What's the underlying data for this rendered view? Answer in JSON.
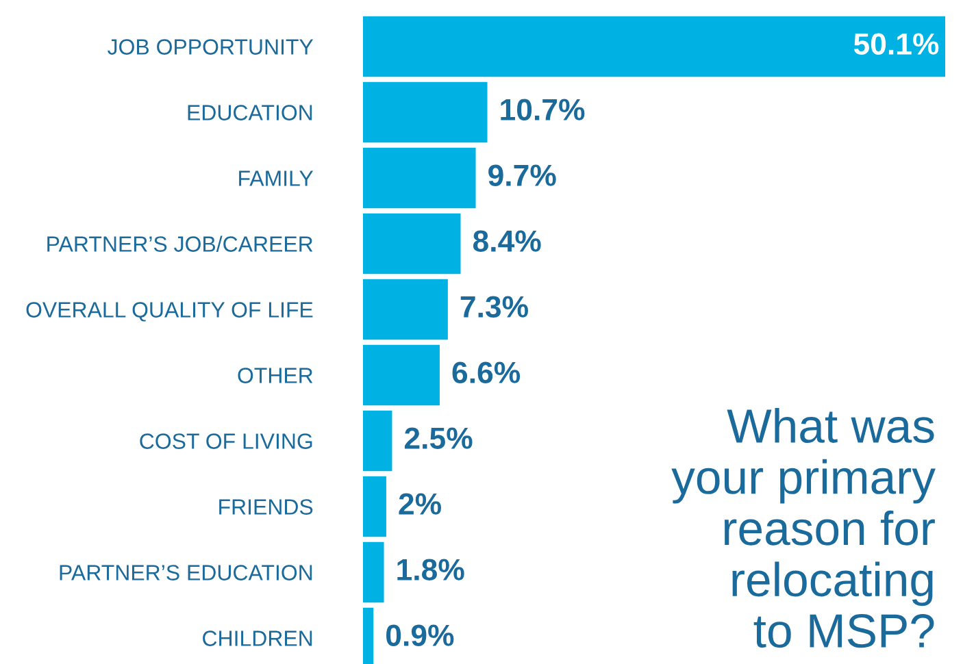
{
  "chart_data": {
    "type": "bar",
    "orientation": "horizontal",
    "title": "What was\nyour primary\nreason for\nrelocating\nto MSP?",
    "categories": [
      "JOB OPPORTUNITY",
      "EDUCATION",
      "FAMILY",
      "PARTNER’S JOB/CAREER",
      "OVERALL QUALITY OF LIFE",
      "OTHER",
      "COST OF LIVING",
      "FRIENDS",
      "PARTNER’S EDUCATION",
      "CHILDREN"
    ],
    "values": [
      50.1,
      10.7,
      9.7,
      8.4,
      7.3,
      6.6,
      2.5,
      2,
      1.8,
      0.9
    ],
    "value_labels": [
      "50.1%",
      "10.7%",
      "9.7%",
      "8.4%",
      "7.3%",
      "6.6%",
      "2.5%",
      "2%",
      "1.8%",
      "0.9%"
    ],
    "color": "#00b2e3",
    "grid": false,
    "legend": false
  }
}
